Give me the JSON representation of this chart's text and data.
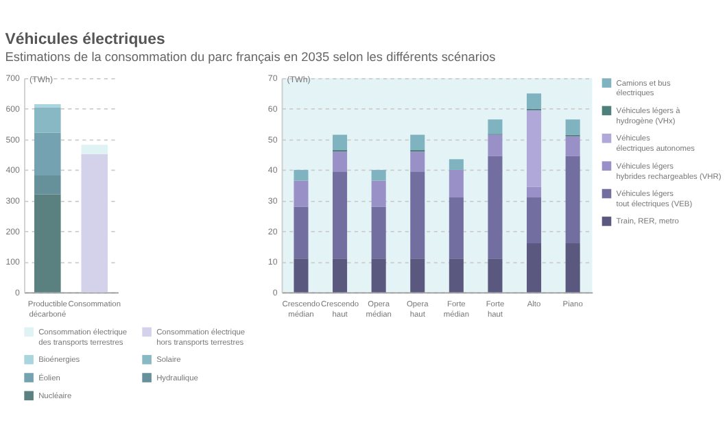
{
  "chart_data": [
    {
      "type": "bar",
      "title": "Véhicules électriques",
      "subtitle": "Estimations de la consommation du parc français en 2035 selon les différents scénarios",
      "ylabel": "(TWh)",
      "categories": [
        "Productible décarboné",
        "Consommation"
      ],
      "stacked": true,
      "ylim": [
        0,
        700
      ],
      "yticks": [
        0,
        100,
        200,
        300,
        400,
        500,
        600,
        700
      ],
      "grid": "y",
      "legend": "bottom",
      "series": [
        {
          "name": "Nucléaire",
          "color": "#5a8080",
          "values": [
            320,
            null
          ]
        },
        {
          "name": "Hydraulique",
          "color": "#66909a",
          "values": [
            62,
            null
          ]
        },
        {
          "name": "Éolien",
          "color": "#75a2b0",
          "values": [
            140,
            null
          ]
        },
        {
          "name": "Solaire",
          "color": "#87b8c4",
          "values": [
            83,
            null
          ]
        },
        {
          "name": "Bioénergies",
          "color": "#a9d6de",
          "values": [
            10,
            null
          ]
        },
        {
          "name": "Consommation électrique hors transports terrestres",
          "color": "#d4d2ea",
          "values": [
            null,
            452
          ]
        },
        {
          "name": "Consommation électrique des transports terrestres",
          "color": "#dff2f4",
          "values": [
            null,
            30
          ]
        }
      ]
    },
    {
      "type": "bar",
      "ylabel": "(TWh)",
      "categories": [
        "Crescendo médian",
        "Crescendo haut",
        "Opera médian",
        "Opera haut",
        "Forte médian",
        "Forte haut",
        "Alto",
        "Piano"
      ],
      "stacked": true,
      "ylim": [
        0,
        70
      ],
      "yticks": [
        0,
        10,
        20,
        30,
        40,
        50,
        60,
        70
      ],
      "grid": "y",
      "legend": "right",
      "series": [
        {
          "name": "Train, RER, metro",
          "color": "#5a587e",
          "values": [
            11,
            11,
            11,
            11,
            11,
            11,
            16,
            16
          ]
        },
        {
          "name": "Véhicules légers tout électriques (VEB)",
          "color": "#726fa0",
          "values": [
            17,
            28.5,
            17,
            28.5,
            20,
            33.5,
            15,
            28.5
          ]
        },
        {
          "name": "Véhicules légers hybrides rechargeables (VHR)",
          "color": "#9a90c8",
          "values": [
            8.5,
            6.5,
            8.5,
            6.5,
            9,
            7,
            3.5,
            6.5
          ]
        },
        {
          "name": "Véhicules électriques autonomes",
          "color": "#b0a8d8",
          "values": [
            null,
            null,
            null,
            null,
            null,
            null,
            25,
            null
          ]
        },
        {
          "name": "Véhicules légers à hydrogène (VHx)",
          "color": "#4f7f7a",
          "values": [
            null,
            0.5,
            null,
            0.5,
            null,
            0.3,
            0.5,
            0.5
          ]
        },
        {
          "name": "Camions et bus électriques",
          "color": "#7fb3bf",
          "values": [
            3.5,
            5,
            3.5,
            5,
            3.5,
            4.7,
            5,
            5
          ]
        }
      ]
    }
  ]
}
